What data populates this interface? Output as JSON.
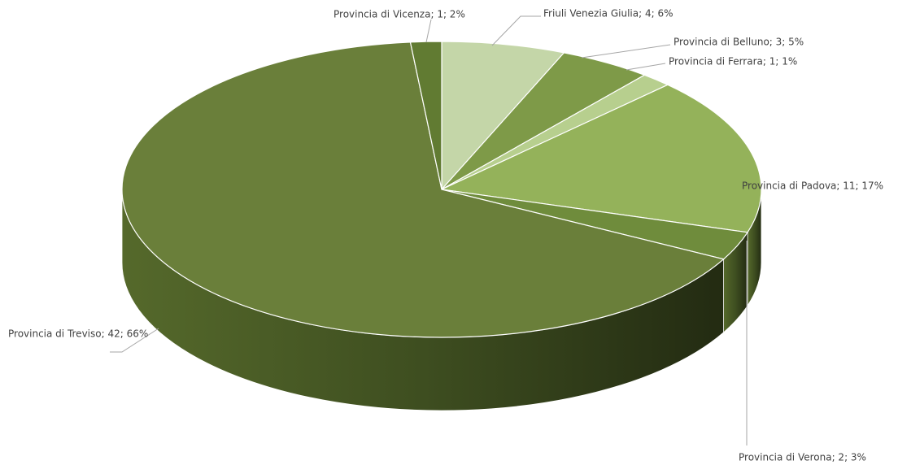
{
  "chart_data": {
    "type": "pie",
    "categories": [
      "Friuli Venezia Giulia",
      "Provincia di Belluno",
      "Provincia di Ferrara",
      "Provincia di Padova",
      "Provincia di Verona",
      "Provincia di Treviso",
      "Provincia di Vicenza"
    ],
    "values": [
      4,
      3,
      1,
      11,
      2,
      42,
      1
    ],
    "value_labels": [
      "Friuli Venezia Giulia; 4; 6%",
      "Provincia di Belluno; 3; 5%",
      "Provincia di Ferrara; 1; 1%",
      "Provincia di Padova; 11; 17%",
      "Provincia di Verona; 2; 3%",
      "Provincia di Treviso; 42; 66%",
      "Provincia di Vicenza; 1; 2%"
    ],
    "colors": [
      "#c4d6a8",
      "#7e9a48",
      "#b7cf8e",
      "#94b25a",
      "#6f8c3c",
      "#6a7f3a",
      "#617b32"
    ]
  }
}
